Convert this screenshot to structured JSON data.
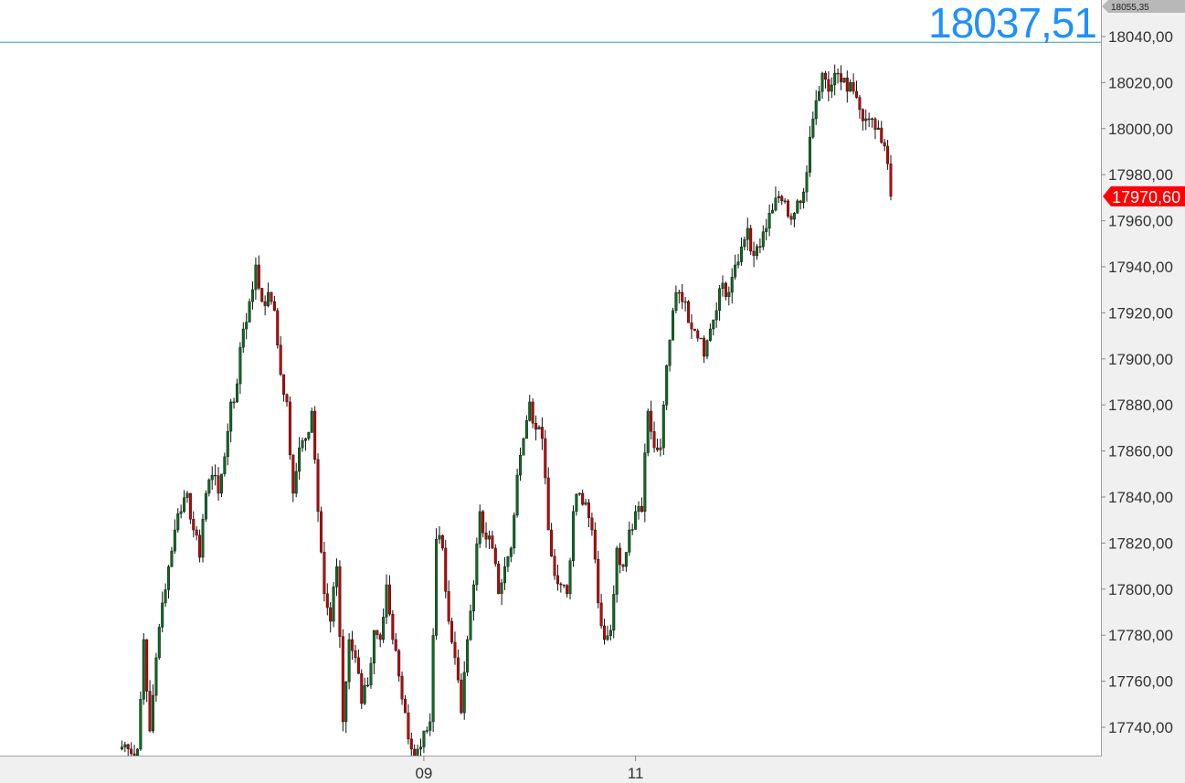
{
  "chart_data": {
    "type": "candlestick",
    "ylim": [
      17727.7,
      18055.35
    ],
    "y_ticks": [
      "17740,00",
      "17760,00",
      "17780,00",
      "17800,00",
      "17820,00",
      "17840,00",
      "17860,00",
      "17880,00",
      "17900,00",
      "17920,00",
      "17940,00",
      "17960,00",
      "17980,00",
      "18000,00",
      "18020,00",
      "18040,00"
    ],
    "x_ticks": [
      {
        "label": "09",
        "index": 49
      },
      {
        "label": "11",
        "index": 83
      }
    ],
    "closes": [
      17730.5,
      17732.5,
      17728.5,
      17730.5,
      17778.1,
      17738.4,
      17770.2,
      17794,
      17809.8,
      17825.7,
      17833.7,
      17841.6,
      17825.7,
      17813.8,
      17841.6,
      17849.5,
      17841.6,
      17857.5,
      17881.3,
      17889.2,
      17913,
      17924.9,
      17940.8,
      17924.9,
      17928.9,
      17921,
      17893.2,
      17881.3,
      17841.6,
      17861.4,
      17865.4,
      17877.3,
      17833.7,
      17798,
      17786,
      17809.8,
      17742.4,
      17778.1,
      17770.2,
      17750.3,
      17758.3,
      17782.1,
      17778.1,
      17801.9,
      17778.1,
      17762.2,
      17746.3,
      17730.5,
      17730.5,
      17738.4,
      17742.4,
      17821.7,
      17817.8,
      17786,
      17770.2,
      17746.3,
      17778.1,
      17801.9,
      17833.7,
      17821.7,
      17817.8,
      17798,
      17809.8,
      17817.8,
      17849.5,
      17865.4,
      17881.3,
      17869.4,
      17865.4,
      17825.7,
      17805.9,
      17801.9,
      17798,
      17833.7,
      17841.6,
      17837.6,
      17825.7,
      17794,
      17778.1,
      17782.1,
      17817.8,
      17809.8,
      17825.7,
      17833.7,
      17833.7,
      17877.3,
      17861.4,
      17861.4,
      17897.1,
      17921,
      17928.9,
      17924.9,
      17913,
      17909,
      17901.1,
      17913,
      17921,
      17932.9,
      17928.9,
      17940.8,
      17948.7,
      17956.7,
      17944.8,
      17948.7,
      17956.7,
      17964.6,
      17970.6,
      17968.6,
      17960.6,
      17968.6,
      17972.5,
      17996.3,
      18012.2,
      18024.1,
      18016.2,
      18024.1,
      18020.2,
      18016.2,
      18016.2,
      18008.3,
      18004.3,
      18004.3,
      18000.3,
      17992.4,
      17970.6
    ],
    "up_color": "#0b6a22",
    "down_color": "#c00000",
    "grid": false
  },
  "axis_top_value": "18055,35",
  "last_price": {
    "value": 17970.6,
    "label": "17970,60",
    "color": "#ff0000"
  },
  "crosshair": {
    "value": 18037.51,
    "label": "18037,51",
    "color": "#1e90ff",
    "line_color": "#2a9fbf"
  }
}
